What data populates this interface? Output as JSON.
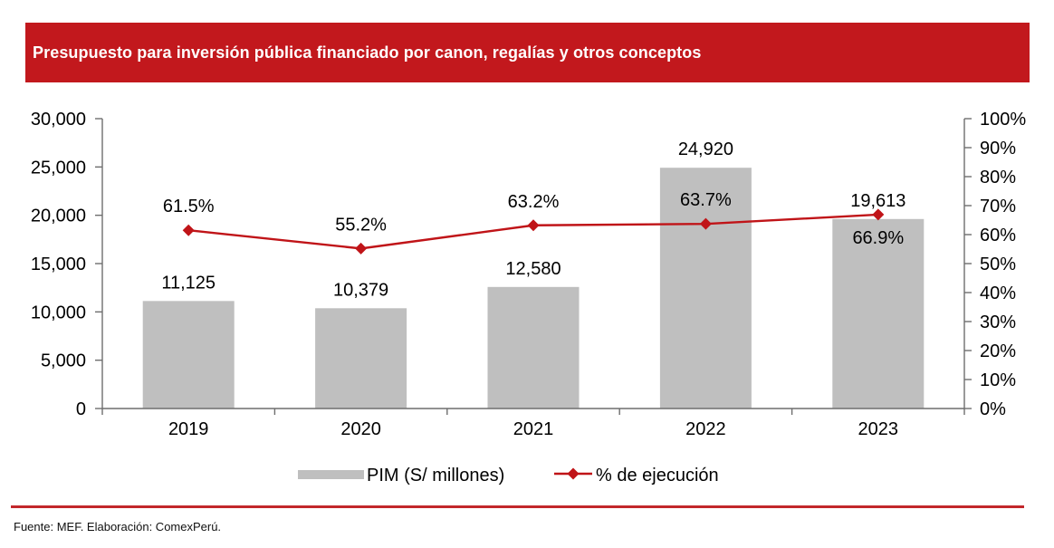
{
  "title": "Presupuesto para inversión pública financiado por canon, regalías y otros conceptos",
  "footer": {
    "source": "Fuente: MEF. Elaboración: ComexPerú."
  },
  "colors": {
    "banner_red": "#C2181D",
    "rule_red": "#C2272B",
    "bar_gray": "#BFBFBF",
    "line_red": "#C01418",
    "axis_gray": "#6E6E6E",
    "text_black": "#000000"
  },
  "legend": [
    {
      "label": "PIM (S/ millones)",
      "type": "bar"
    },
    {
      "label": "% de ejecución",
      "type": "line"
    }
  ],
  "chart_data": {
    "type": "combo",
    "categories": [
      "2019",
      "2020",
      "2021",
      "2022",
      "2023"
    ],
    "series": [
      {
        "name": "PIM (S/ millones)",
        "type": "bar",
        "axis": "left",
        "values": [
          11125,
          10379,
          12580,
          24920,
          19613
        ],
        "labels": [
          "11,125",
          "10,379",
          "12,580",
          "24,920",
          "19,613"
        ]
      },
      {
        "name": "% de ejecución",
        "type": "line",
        "axis": "right",
        "values": [
          61.5,
          55.2,
          63.2,
          63.7,
          66.9
        ],
        "labels": [
          "61.5%",
          "55.2%",
          "63.2%",
          "63.7%",
          "66.9%"
        ],
        "label_positions": [
          "above",
          "above",
          "above",
          "above",
          "below"
        ]
      }
    ],
    "left_axis": {
      "min": 0,
      "max": 30000,
      "tick_step": 5000,
      "tick_labels": [
        "0",
        "5,000",
        "10,000",
        "15,000",
        "20,000",
        "25,000",
        "30,000"
      ]
    },
    "right_axis": {
      "min": 0,
      "max": 100,
      "tick_step": 10,
      "tick_labels": [
        "0%",
        "10%",
        "20%",
        "30%",
        "40%",
        "50%",
        "60%",
        "70%",
        "80%",
        "90%",
        "100%"
      ]
    },
    "grid": false,
    "legend_position": "bottom",
    "title": "Presupuesto para inversión pública financiado por canon, regalías y otros conceptos",
    "xlabel": "",
    "ylabel_left": "PIM (S/ millones)",
    "ylabel_right": "% de ejecución"
  }
}
